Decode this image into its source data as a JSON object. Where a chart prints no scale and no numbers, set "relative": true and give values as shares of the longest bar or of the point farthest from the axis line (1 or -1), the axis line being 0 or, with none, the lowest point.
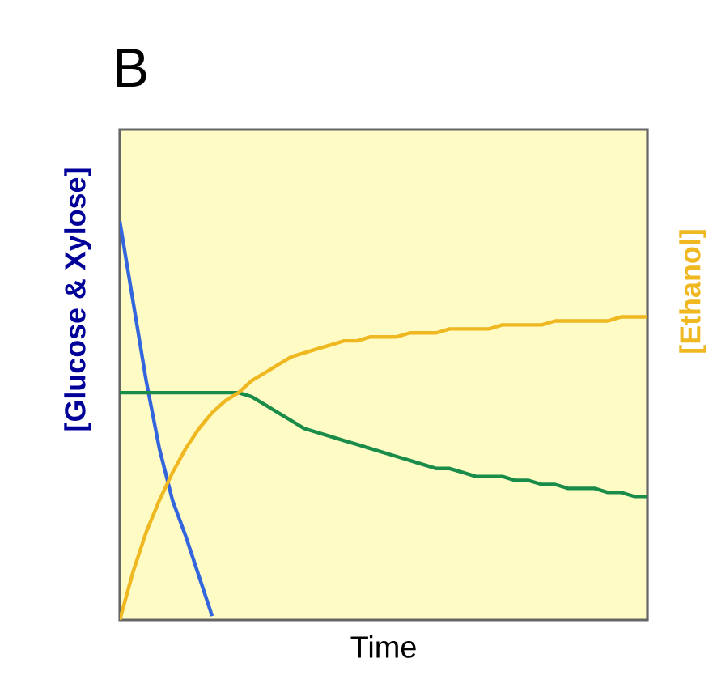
{
  "chart_data": {
    "type": "line",
    "title": "B",
    "xlabel": "Time",
    "ylabel": "[Glucose & Xylose]",
    "y2label": "[Ethanol]",
    "relative": true,
    "categories": [
      null,
      null,
      null,
      null,
      null,
      null,
      null,
      null,
      null,
      null,
      null,
      null,
      null,
      null,
      null,
      null,
      null,
      null,
      null,
      null,
      null,
      null,
      null,
      null,
      null,
      null,
      null,
      null,
      null,
      null,
      null,
      null,
      null,
      null,
      null,
      null,
      null,
      null,
      null,
      null,
      null
    ],
    "series": [
      {
        "color": "#3366dd",
        "values": [
          1.0,
          0.8,
          0.6,
          0.43,
          0.3,
          0.21,
          0.11,
          0.01,
          null,
          null,
          null,
          null,
          null,
          null,
          null,
          null,
          null,
          null,
          null,
          null,
          null,
          null,
          null,
          null,
          null,
          null,
          null,
          null,
          null,
          null,
          null,
          null,
          null,
          null,
          null,
          null,
          null,
          null,
          null,
          null,
          null
        ]
      },
      {
        "color": "#1a8c4a",
        "values": [
          0.57,
          0.57,
          0.57,
          0.57,
          0.57,
          0.57,
          0.57,
          0.57,
          0.57,
          0.57,
          0.56,
          0.54,
          0.52,
          0.5,
          0.48,
          0.47,
          0.46,
          0.45,
          0.44,
          0.43,
          0.42,
          0.41,
          0.4,
          0.39,
          0.38,
          0.38,
          0.37,
          0.36,
          0.36,
          0.36,
          0.35,
          0.35,
          0.34,
          0.34,
          0.33,
          0.33,
          0.33,
          0.32,
          0.32,
          0.31,
          0.31
        ]
      },
      {
        "color": "#f0b820",
        "values": [
          0,
          0.12,
          0.22,
          0.3,
          0.37,
          0.43,
          0.48,
          0.52,
          0.55,
          0.57,
          0.6,
          0.62,
          0.64,
          0.66,
          0.67,
          0.68,
          0.69,
          0.7,
          0.7,
          0.71,
          0.71,
          0.71,
          0.72,
          0.72,
          0.72,
          0.73,
          0.73,
          0.73,
          0.73,
          0.74,
          0.74,
          0.74,
          0.74,
          0.75,
          0.75,
          0.75,
          0.75,
          0.75,
          0.76,
          0.76,
          0.76
        ]
      }
    ]
  }
}
